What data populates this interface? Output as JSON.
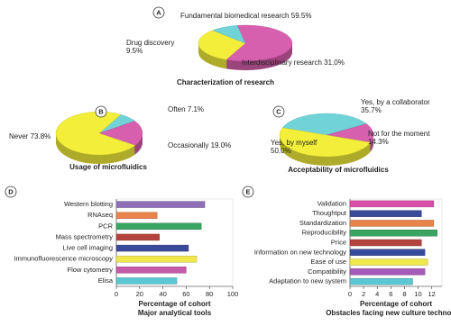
{
  "chart_data": [
    {
      "type": "pie",
      "panel": "A",
      "title": "Characterization of research",
      "categories": [
        "Fundamental biomedical research",
        "Interdisciplinary research",
        "Drug discovery"
      ],
      "values": [
        59.5,
        31.0,
        9.5
      ],
      "value_labels": [
        "59.5%",
        "31.0%",
        "9.5%"
      ],
      "colors": [
        "#d65fae",
        "#f2ee3a",
        "#6fd3d8"
      ]
    },
    {
      "type": "pie",
      "panel": "B",
      "title": "Usage of microfluidics",
      "categories": [
        "Often",
        "Occasionally",
        "Never"
      ],
      "values": [
        7.1,
        19.0,
        73.8
      ],
      "value_labels": [
        "7.1%",
        "19.0%",
        "73.8%"
      ],
      "colors": [
        "#6fd3d8",
        "#d65fae",
        "#f2ee3a"
      ]
    },
    {
      "type": "pie",
      "panel": "C",
      "title": "Acceptability of microfluidics",
      "categories": [
        "Yes, by a collaborator",
        "Not for the moment",
        "Yes, by myself"
      ],
      "values": [
        35.7,
        14.3,
        50.0
      ],
      "value_labels": [
        "35.7%",
        "14.3%",
        "50.0%"
      ],
      "colors": [
        "#6fd3d8",
        "#d65fae",
        "#f2ee3a"
      ]
    },
    {
      "type": "bar",
      "orientation": "horizontal",
      "panel": "D",
      "title": "Major analytical tools",
      "xlabel": "Percentage of cohort",
      "categories": [
        "Western blotting",
        "RNAseq",
        "PCR",
        "Mass spectrometry",
        "Live cell imaging",
        "Immunofluorescence microscopy",
        "Flow cytometry",
        "Elisa"
      ],
      "values": [
        76,
        35,
        73,
        37,
        62,
        69,
        60,
        52
      ],
      "colors": [
        "#8e6fb8",
        "#e8834a",
        "#3aa562",
        "#b3433c",
        "#3a4a9a",
        "#f0e84a",
        "#c45aa8",
        "#5cc7d0"
      ],
      "xlim": [
        0,
        100
      ],
      "xticks": [
        0,
        20,
        40,
        60,
        80,
        100
      ]
    },
    {
      "type": "bar",
      "orientation": "horizontal",
      "panel": "E",
      "title": "Obstacles facing new culture technology",
      "xlabel": "Percentage of cohort",
      "categories": [
        "Validation",
        "Thoughtput",
        "Standardization",
        "Reproducibility",
        "Price",
        "Information on new technology",
        "Ease of use",
        "Compatibility",
        "Adaptation to new system"
      ],
      "values": [
        12.3,
        10.5,
        12.3,
        12.8,
        10.5,
        11,
        11.4,
        11,
        9.2
      ],
      "colors": [
        "#d84fa8",
        "#3a4a9a",
        "#e8834a",
        "#3aa562",
        "#b3433c",
        "#3a4a9a",
        "#f0e84a",
        "#a45ab8",
        "#5cc7d0"
      ],
      "xlim": [
        0,
        13.5
      ],
      "xticks": [
        0,
        2,
        4,
        6,
        8,
        10,
        12
      ]
    }
  ]
}
